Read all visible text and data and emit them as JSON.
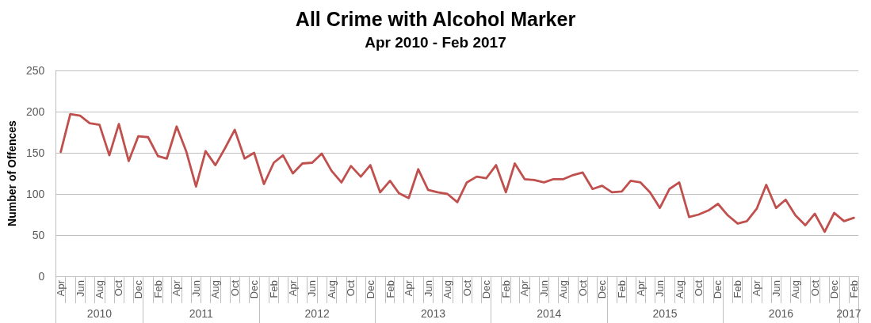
{
  "chart_data": {
    "type": "line",
    "title": "All Crime with Alcohol Marker",
    "subtitle": "Apr 2010 - Feb 2017",
    "ylabel": "Number of Offences",
    "x": [
      "2010-04",
      "2010-05",
      "2010-06",
      "2010-07",
      "2010-08",
      "2010-09",
      "2010-10",
      "2010-11",
      "2010-12",
      "2011-01",
      "2011-02",
      "2011-03",
      "2011-04",
      "2011-05",
      "2011-06",
      "2011-07",
      "2011-08",
      "2011-09",
      "2011-10",
      "2011-11",
      "2011-12",
      "2012-01",
      "2012-02",
      "2012-03",
      "2012-04",
      "2012-05",
      "2012-06",
      "2012-07",
      "2012-08",
      "2012-09",
      "2012-10",
      "2012-11",
      "2012-12",
      "2013-01",
      "2013-02",
      "2013-03",
      "2013-04",
      "2013-05",
      "2013-06",
      "2013-07",
      "2013-08",
      "2013-09",
      "2013-10",
      "2013-11",
      "2013-12",
      "2014-01",
      "2014-02",
      "2014-03",
      "2014-04",
      "2014-05",
      "2014-06",
      "2014-07",
      "2014-08",
      "2014-09",
      "2014-10",
      "2014-11",
      "2014-12",
      "2015-01",
      "2015-02",
      "2015-03",
      "2015-04",
      "2015-05",
      "2015-06",
      "2015-07",
      "2015-08",
      "2015-09",
      "2015-10",
      "2015-11",
      "2015-12",
      "2016-01",
      "2016-02",
      "2016-03",
      "2016-04",
      "2016-05",
      "2016-06",
      "2016-07",
      "2016-08",
      "2016-09",
      "2016-10",
      "2016-11",
      "2016-12",
      "2017-01",
      "2017-02"
    ],
    "values": [
      151,
      197,
      195,
      186,
      184,
      147,
      185,
      140,
      170,
      169,
      146,
      143,
      182,
      152,
      109,
      152,
      135,
      156,
      178,
      143,
      150,
      112,
      138,
      147,
      125,
      137,
      138,
      149,
      128,
      114,
      134,
      121,
      135,
      102,
      116,
      101,
      95,
      130,
      105,
      102,
      100,
      90,
      114,
      121,
      119,
      135,
      102,
      137,
      118,
      117,
      114,
      118,
      118,
      123,
      126,
      106,
      110,
      102,
      103,
      116,
      114,
      102,
      83,
      106,
      114,
      72,
      75,
      80,
      88,
      74,
      64,
      67,
      82,
      111,
      83,
      93,
      74,
      62,
      76,
      54,
      77,
      67,
      71
    ],
    "color": "#c0504d",
    "line_style": "solid",
    "grid": "y",
    "xlim": [
      "2010-03-16",
      "2017-02-15"
    ],
    "xticks": [
      {
        "value": "2010-04",
        "label": "Apr"
      },
      {
        "value": "2010-06",
        "label": "Jun"
      },
      {
        "value": "2010-08",
        "label": "Aug"
      },
      {
        "value": "2010-10",
        "label": "Oct"
      },
      {
        "value": "2010-12",
        "label": "Dec"
      },
      {
        "value": "2011-02",
        "label": "Feb"
      },
      {
        "value": "2011-04",
        "label": "Apr"
      },
      {
        "value": "2011-06",
        "label": "Jun"
      },
      {
        "value": "2011-08",
        "label": "Aug"
      },
      {
        "value": "2011-10",
        "label": "Oct"
      },
      {
        "value": "2011-12",
        "label": "Dec"
      },
      {
        "value": "2012-02",
        "label": "Feb"
      },
      {
        "value": "2012-04",
        "label": "Apr"
      },
      {
        "value": "2012-06",
        "label": "Jun"
      },
      {
        "value": "2012-08",
        "label": "Aug"
      },
      {
        "value": "2012-10",
        "label": "Oct"
      },
      {
        "value": "2012-12",
        "label": "Dec"
      },
      {
        "value": "2013-02",
        "label": "Feb"
      },
      {
        "value": "2013-04",
        "label": "Apr"
      },
      {
        "value": "2013-06",
        "label": "Jun"
      },
      {
        "value": "2013-08",
        "label": "Aug"
      },
      {
        "value": "2013-10",
        "label": "Oct"
      },
      {
        "value": "2013-12",
        "label": "Dec"
      },
      {
        "value": "2014-02",
        "label": "Feb"
      },
      {
        "value": "2014-04",
        "label": "Apr"
      },
      {
        "value": "2014-06",
        "label": "Jun"
      },
      {
        "value": "2014-08",
        "label": "Aug"
      },
      {
        "value": "2014-10",
        "label": "Oct"
      },
      {
        "value": "2014-12",
        "label": "Dec"
      },
      {
        "value": "2015-02",
        "label": "Feb"
      },
      {
        "value": "2015-04",
        "label": "Apr"
      },
      {
        "value": "2015-06",
        "label": "Jun"
      },
      {
        "value": "2015-08",
        "label": "Aug"
      },
      {
        "value": "2015-10",
        "label": "Oct"
      },
      {
        "value": "2015-12",
        "label": "Dec"
      },
      {
        "value": "2016-02",
        "label": "Feb"
      },
      {
        "value": "2016-04",
        "label": "Apr"
      },
      {
        "value": "2016-06",
        "label": "Jun"
      },
      {
        "value": "2016-08",
        "label": "Aug"
      },
      {
        "value": "2016-10",
        "label": "Oct"
      },
      {
        "value": "2016-12",
        "label": "Dec"
      },
      {
        "value": "2017-02",
        "label": "Feb"
      }
    ],
    "ylim": [
      0,
      250
    ],
    "yticks": [
      0,
      50,
      100,
      150,
      200,
      250
    ],
    "annotations": [
      "2010",
      "2011",
      "2012",
      "2013",
      "2014",
      "2015",
      "2016",
      "2017"
    ]
  }
}
